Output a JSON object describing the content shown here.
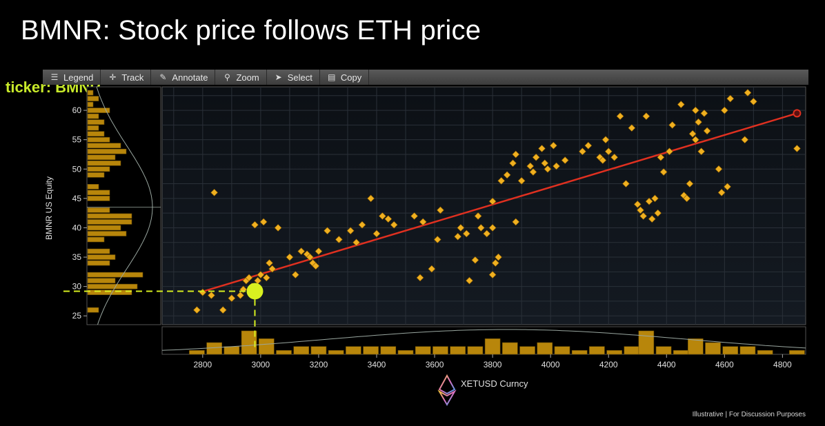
{
  "slide": {
    "title": "BMNR: Stock price follows ETH price",
    "ticker_label": "ticker: BMNR",
    "footer": "Illustrative  |  For Discussion Purposes"
  },
  "toolbar": {
    "items": [
      {
        "label": "Legend",
        "icon": "legend-icon"
      },
      {
        "label": "Track",
        "icon": "crosshair-icon"
      },
      {
        "label": "Annotate",
        "icon": "pencil-icon"
      },
      {
        "label": "Zoom",
        "icon": "magnifier-icon"
      },
      {
        "label": "Select",
        "icon": "pointer-icon"
      },
      {
        "label": "Copy",
        "icon": "clipboard-icon"
      }
    ]
  },
  "colors": {
    "background": "#000000",
    "plot_background": "#0f1419",
    "point": "#f0b020",
    "fit_line": "#e03020",
    "histogram": "#b8860b",
    "highlight": "#d8f020"
  },
  "chart_data": {
    "type": "scatter",
    "title": "",
    "xlabel": "XETUSD Curncy",
    "ylabel": "BMNR US Equity",
    "xlim": [
      2660,
      4880
    ],
    "ylim": [
      23.5,
      64
    ],
    "x_ticks": [
      2800,
      3000,
      3200,
      3400,
      3600,
      3800,
      4000,
      4200,
      4400,
      4600,
      4800
    ],
    "y_ticks": [
      25,
      30,
      35,
      40,
      45,
      50,
      55,
      60
    ],
    "grid": true,
    "regression_line": {
      "x": [
        2790,
        4850
      ],
      "y": [
        29.0,
        59.5
      ]
    },
    "highlight_point": {
      "x": 2980,
      "y": 29.2
    },
    "fit_endpoint": {
      "x": 4850,
      "y": 59.5
    },
    "points": [
      [
        2780,
        26
      ],
      [
        2800,
        29
      ],
      [
        2830,
        28.5
      ],
      [
        2840,
        46
      ],
      [
        2870,
        26
      ],
      [
        2900,
        28
      ],
      [
        2930,
        28.5
      ],
      [
        2940,
        29.5
      ],
      [
        2950,
        31
      ],
      [
        2960,
        31.5
      ],
      [
        2970,
        30
      ],
      [
        2980,
        40.5
      ],
      [
        2990,
        31
      ],
      [
        3000,
        32
      ],
      [
        3010,
        41
      ],
      [
        3020,
        31.5
      ],
      [
        3030,
        34
      ],
      [
        3040,
        33
      ],
      [
        3060,
        40
      ],
      [
        3100,
        35
      ],
      [
        3120,
        32
      ],
      [
        3140,
        36
      ],
      [
        3160,
        35.5
      ],
      [
        3170,
        35
      ],
      [
        3180,
        34
      ],
      [
        3190,
        33.5
      ],
      [
        3200,
        36
      ],
      [
        3230,
        39.5
      ],
      [
        3270,
        38
      ],
      [
        3310,
        39.5
      ],
      [
        3330,
        37.5
      ],
      [
        3350,
        40.5
      ],
      [
        3380,
        45
      ],
      [
        3400,
        39
      ],
      [
        3420,
        42
      ],
      [
        3440,
        41.5
      ],
      [
        3460,
        40.5
      ],
      [
        3530,
        42
      ],
      [
        3550,
        31.5
      ],
      [
        3560,
        41
      ],
      [
        3590,
        33
      ],
      [
        3610,
        38
      ],
      [
        3620,
        43
      ],
      [
        3720,
        31
      ],
      [
        3740,
        34.5
      ],
      [
        3760,
        40
      ],
      [
        3800,
        44.5
      ],
      [
        3780,
        39
      ],
      [
        3800,
        32
      ],
      [
        3810,
        34
      ],
      [
        3820,
        35
      ],
      [
        3830,
        48
      ],
      [
        3680,
        38.5
      ],
      [
        3690,
        40
      ],
      [
        3710,
        39
      ],
      [
        3750,
        42
      ],
      [
        3800,
        40
      ],
      [
        3850,
        49
      ],
      [
        3870,
        51
      ],
      [
        3880,
        52.5
      ],
      [
        3880,
        41
      ],
      [
        3900,
        48
      ],
      [
        3930,
        50.5
      ],
      [
        3940,
        49.5
      ],
      [
        3950,
        52
      ],
      [
        3970,
        53.5
      ],
      [
        3980,
        51
      ],
      [
        3990,
        50
      ],
      [
        4010,
        54
      ],
      [
        4020,
        50.5
      ],
      [
        4050,
        51.5
      ],
      [
        4110,
        53
      ],
      [
        4130,
        54
      ],
      [
        4170,
        52
      ],
      [
        4180,
        51.5
      ],
      [
        4190,
        55
      ],
      [
        4200,
        53
      ],
      [
        4220,
        52
      ],
      [
        4240,
        59
      ],
      [
        4260,
        47.5
      ],
      [
        4280,
        57
      ],
      [
        4300,
        44
      ],
      [
        4310,
        43
      ],
      [
        4320,
        42
      ],
      [
        4330,
        59
      ],
      [
        4340,
        44.5
      ],
      [
        4350,
        41.5
      ],
      [
        4360,
        45
      ],
      [
        4370,
        42.5
      ],
      [
        4380,
        52
      ],
      [
        4390,
        49.5
      ],
      [
        4410,
        53
      ],
      [
        4420,
        57.5
      ],
      [
        4450,
        61
      ],
      [
        4460,
        45.5
      ],
      [
        4470,
        45
      ],
      [
        4480,
        47.5
      ],
      [
        4490,
        56
      ],
      [
        4500,
        60
      ],
      [
        4500,
        55
      ],
      [
        4510,
        58
      ],
      [
        4520,
        53
      ],
      [
        4530,
        59.5
      ],
      [
        4540,
        56.5
      ],
      [
        4580,
        50
      ],
      [
        4590,
        46
      ],
      [
        4600,
        60
      ],
      [
        4610,
        47
      ],
      [
        4620,
        62
      ],
      [
        4670,
        55
      ],
      [
        4680,
        63
      ],
      [
        4700,
        61.5
      ],
      [
        4850,
        53.5
      ],
      [
        4850,
        59.5
      ]
    ],
    "y_histogram": [
      {
        "y": 26,
        "count": 2
      },
      {
        "y": 29,
        "count": 8
      },
      {
        "y": 30,
        "count": 9
      },
      {
        "y": 31,
        "count": 5
      },
      {
        "y": 32,
        "count": 10
      },
      {
        "y": 34,
        "count": 4
      },
      {
        "y": 35,
        "count": 5
      },
      {
        "y": 36,
        "count": 4
      },
      {
        "y": 38,
        "count": 3
      },
      {
        "y": 39,
        "count": 7
      },
      {
        "y": 40,
        "count": 6
      },
      {
        "y": 41,
        "count": 8
      },
      {
        "y": 42,
        "count": 8
      },
      {
        "y": 43,
        "count": 4
      },
      {
        "y": 45,
        "count": 4
      },
      {
        "y": 46,
        "count": 4
      },
      {
        "y": 47,
        "count": 2
      },
      {
        "y": 49,
        "count": 3
      },
      {
        "y": 50,
        "count": 4
      },
      {
        "y": 51,
        "count": 6
      },
      {
        "y": 52,
        "count": 5
      },
      {
        "y": 53,
        "count": 7
      },
      {
        "y": 54,
        "count": 6
      },
      {
        "y": 55,
        "count": 4
      },
      {
        "y": 56,
        "count": 3
      },
      {
        "y": 57,
        "count": 2
      },
      {
        "y": 58,
        "count": 3
      },
      {
        "y": 59,
        "count": 2
      },
      {
        "y": 60,
        "count": 4
      },
      {
        "y": 61,
        "count": 1
      },
      {
        "y": 62,
        "count": 2
      },
      {
        "y": 63,
        "count": 1
      }
    ],
    "x_histogram": [
      {
        "x": 2780,
        "count": 1
      },
      {
        "x": 2840,
        "count": 3
      },
      {
        "x": 2900,
        "count": 2
      },
      {
        "x": 2960,
        "count": 6
      },
      {
        "x": 3020,
        "count": 4
      },
      {
        "x": 3080,
        "count": 1
      },
      {
        "x": 3140,
        "count": 2
      },
      {
        "x": 3200,
        "count": 2
      },
      {
        "x": 3260,
        "count": 1
      },
      {
        "x": 3320,
        "count": 2
      },
      {
        "x": 3380,
        "count": 2
      },
      {
        "x": 3440,
        "count": 2
      },
      {
        "x": 3500,
        "count": 1
      },
      {
        "x": 3560,
        "count": 2
      },
      {
        "x": 3620,
        "count": 2
      },
      {
        "x": 3680,
        "count": 2
      },
      {
        "x": 3740,
        "count": 2
      },
      {
        "x": 3800,
        "count": 4
      },
      {
        "x": 3860,
        "count": 3
      },
      {
        "x": 3920,
        "count": 2
      },
      {
        "x": 3980,
        "count": 3
      },
      {
        "x": 4040,
        "count": 2
      },
      {
        "x": 4100,
        "count": 1
      },
      {
        "x": 4160,
        "count": 2
      },
      {
        "x": 4220,
        "count": 1
      },
      {
        "x": 4280,
        "count": 2
      },
      {
        "x": 4330,
        "count": 6
      },
      {
        "x": 4390,
        "count": 2
      },
      {
        "x": 4450,
        "count": 1
      },
      {
        "x": 4500,
        "count": 4
      },
      {
        "x": 4560,
        "count": 3
      },
      {
        "x": 4620,
        "count": 2
      },
      {
        "x": 4680,
        "count": 2
      },
      {
        "x": 4740,
        "count": 1
      },
      {
        "x": 4850,
        "count": 1
      }
    ]
  }
}
